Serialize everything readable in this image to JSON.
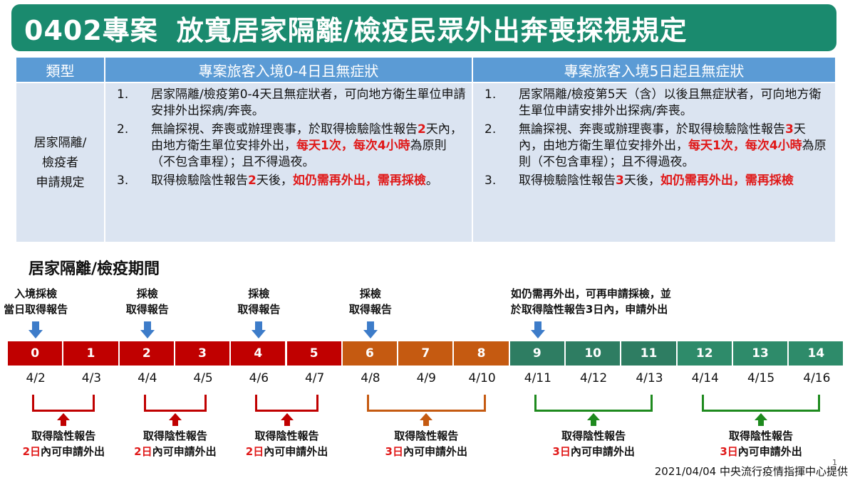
{
  "title": {
    "code": "0402專案",
    "text": "放寬居家隔離/檢疫民眾外出奔喪探視規定"
  },
  "table": {
    "headers": [
      "類型",
      "專案旅客入境0-4日且無症狀",
      "專案旅客入境5日起且無症狀"
    ],
    "type_label_lines": [
      "居家隔離/",
      "檢疫者",
      "申請規定"
    ],
    "col1": [
      {
        "num": "1.",
        "parts": [
          {
            "text": "居家隔離/檢疫第0-4天且無症狀者，可向地方衛生單位申請安排外出探病/奔喪。",
            "red": false
          }
        ]
      },
      {
        "num": "2.",
        "parts": [
          {
            "text": "無論探視、奔喪或辦理喪事，於取得檢驗陰性報告",
            "red": false
          },
          {
            "text": "2",
            "red": true
          },
          {
            "text": "天內，由地方衛生單位安排外出，",
            "red": false
          },
          {
            "text": "每天1次，每次4小時",
            "red": true
          },
          {
            "text": "為原則（不包含車程）；且不得過夜。",
            "red": false
          }
        ]
      },
      {
        "num": "3.",
        "parts": [
          {
            "text": "取得檢驗陰性報告",
            "red": false
          },
          {
            "text": "2",
            "red": true
          },
          {
            "text": "天後，",
            "red": false
          },
          {
            "text": "如仍需再外出，需再採檢",
            "red": true
          },
          {
            "text": "。",
            "red": false
          }
        ]
      }
    ],
    "col2": [
      {
        "num": "1.",
        "parts": [
          {
            "text": "居家隔離/檢疫第5天（含）以後且無症狀者，可向地方衛生單位申請安排外出探病/奔喪。",
            "red": false
          }
        ]
      },
      {
        "num": "2.",
        "parts": [
          {
            "text": "無論探視、奔喪或辦理喪事，於取得檢驗陰性報告",
            "red": false
          },
          {
            "text": "3",
            "red": true
          },
          {
            "text": "天內，由地方衛生單位安排外出，",
            "red": false
          },
          {
            "text": "每天1次，每次4小時",
            "red": true
          },
          {
            "text": "為原則（不包含車程）；且不得過夜。",
            "red": false
          }
        ]
      },
      {
        "num": "3.",
        "parts": [
          {
            "text": "取得檢驗陰性報告",
            "red": false
          },
          {
            "text": "3",
            "red": true
          },
          {
            "text": "天後，",
            "red": false
          },
          {
            "text": "如仍需再外出，需再採檢",
            "red": true
          }
        ]
      }
    ]
  },
  "period_title": "居家隔離/檢疫期間",
  "annotations": [
    {
      "day": 0,
      "lines": [
        "入境採檢",
        "當日取得報告"
      ]
    },
    {
      "day": 2,
      "lines": [
        "採檢",
        "取得報告"
      ]
    },
    {
      "day": 4,
      "lines": [
        "採檢",
        "取得報告"
      ]
    },
    {
      "day": 6,
      "lines": [
        "採檢",
        "取得報告"
      ]
    },
    {
      "day": 9,
      "lines": [
        "如仍需再外出，可再申請採檢，並",
        "於取得陰性報告3日內，申請外出"
      ],
      "wide": true
    }
  ],
  "timeline": {
    "days": [
      "0",
      "1",
      "2",
      "3",
      "4",
      "5",
      "6",
      "7",
      "8",
      "9",
      "10",
      "11",
      "12",
      "13",
      "14"
    ],
    "dates": [
      "4/2",
      "4/3",
      "4/4",
      "4/5",
      "4/6",
      "4/7",
      "4/8",
      "4/9",
      "4/10",
      "4/11",
      "4/12",
      "4/13",
      "4/14",
      "4/15",
      "4/16"
    ],
    "day_colors": [
      "#c00000",
      "#c00000",
      "#c00000",
      "#c00000",
      "#c00000",
      "#c00000",
      "#c55a11",
      "#c55a11",
      "#c55a11",
      "#2e7d62",
      "#2e7d62",
      "#2e7d62",
      "#2e8b6a",
      "#2e8b6a",
      "#2e8b6a"
    ]
  },
  "brackets": [
    {
      "start": 0,
      "end": 1,
      "color": "#c00000",
      "line1": "取得陰性報告",
      "line2_num": "2日",
      "line2_rest": "內可申請外出"
    },
    {
      "start": 2,
      "end": 3,
      "color": "#c00000",
      "line1": "取得陰性報告",
      "line2_num": "2日",
      "line2_rest": "內可申請外出"
    },
    {
      "start": 4,
      "end": 5,
      "color": "#c00000",
      "line1": "取得陰性報告",
      "line2_num": "2日",
      "line2_rest": "內可申請外出"
    },
    {
      "start": 6,
      "end": 8,
      "color": "#c55a11",
      "line1": "取得陰性報告",
      "line2_num": "3日",
      "line2_rest": "內可申請外出"
    },
    {
      "start": 9,
      "end": 11,
      "color": "#1e8a1e",
      "line1": "取得陰性報告",
      "line2_num": "3日",
      "line2_rest": "內可申請外出"
    },
    {
      "start": 12,
      "end": 14,
      "color": "#1e8a1e",
      "line1": "取得陰性報告",
      "line2_num": "3日",
      "line2_rest": "內可申請外出"
    }
  ],
  "colors": {
    "title_bg": "#1a8a6e",
    "header_bg": "#5b9bd5",
    "cell_bg": "#dbe4f1",
    "highlight": "#e01818",
    "blue_arrow": "#3d7cc9"
  },
  "page_number": "1",
  "footer": "2021/04/04 中央流行疫情指揮中心提供"
}
